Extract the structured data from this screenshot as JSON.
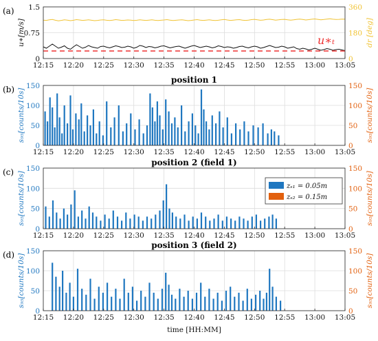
{
  "colors": {
    "blue": "#1f77c0",
    "orange": "#e2600e",
    "yellow": "#f0c232",
    "black": "#111111",
    "red": "#ee3030",
    "grid": "#dcdcdc"
  },
  "chart_data": [
    {
      "panel_label": "(a)",
      "type": "line",
      "title": "",
      "x_tick_labels": [
        "12:15",
        "12:20",
        "12:25",
        "12:30",
        "12:35",
        "12:40",
        "12:45",
        "12:50",
        "12:55",
        "13:00",
        "13:05"
      ],
      "ylabel": "u*[m/s]",
      "ylim": [
        0,
        1.5
      ],
      "y_ticks": [
        "0",
        "0.75",
        "1.5"
      ],
      "ylabel_right": "dr [deg]",
      "ylim_right": [
        0,
        360
      ],
      "y_ticks_right": [
        "0",
        "180",
        "360"
      ],
      "annotation": "u*t",
      "series": [
        {
          "axis": "left",
          "style": "solid",
          "color": "black",
          "values": [
            0.34,
            0.3,
            0.36,
            0.42,
            0.36,
            0.3,
            0.33,
            0.37,
            0.3,
            0.27,
            0.34,
            0.4,
            0.35,
            0.3,
            0.33,
            0.38,
            0.34,
            0.32,
            0.3,
            0.35,
            0.36,
            0.33,
            0.31,
            0.34,
            0.37,
            0.35,
            0.32,
            0.33,
            0.36,
            0.34,
            0.3,
            0.33,
            0.38,
            0.36,
            0.32,
            0.35,
            0.34,
            0.31,
            0.33,
            0.36,
            0.37,
            0.34,
            0.31,
            0.33,
            0.35,
            0.36,
            0.33,
            0.3,
            0.33,
            0.36,
            0.38,
            0.35,
            0.32,
            0.34,
            0.36,
            0.34,
            0.31,
            0.33,
            0.37,
            0.35,
            0.32,
            0.34,
            0.33,
            0.3,
            0.32,
            0.35,
            0.36,
            0.33,
            0.31,
            0.34,
            0.36,
            0.34,
            0.3,
            0.32,
            0.35,
            0.38,
            0.35,
            0.32,
            0.33,
            0.36,
            0.34,
            0.3,
            0.32,
            0.34,
            0.29,
            0.27,
            0.3,
            0.28,
            0.25,
            0.27,
            0.3,
            0.27,
            0.24,
            0.26,
            0.29,
            0.27,
            0.24,
            0.26,
            0.27,
            0.25,
            0.23
          ]
        },
        {
          "axis": "left",
          "style": "dashed",
          "color": "red",
          "values": [
            0.22,
            0.22
          ]
        },
        {
          "axis": "right",
          "style": "solid",
          "color": "yellow",
          "values": [
            268,
            266,
            270,
            272,
            267,
            263,
            266,
            270,
            268,
            264,
            267,
            271,
            269,
            266,
            268,
            270,
            267,
            264,
            266,
            269,
            270,
            267,
            265,
            268,
            271,
            269,
            266,
            267,
            269,
            268,
            265,
            267,
            270,
            268,
            266,
            268,
            270,
            267,
            265,
            267,
            269,
            271,
            268,
            265,
            267,
            269,
            270,
            267,
            264,
            266,
            269,
            271,
            268,
            266,
            268,
            270,
            267,
            265,
            267,
            270,
            272,
            269,
            266,
            268,
            270,
            271,
            268,
            266,
            268,
            271,
            273,
            270,
            267,
            269,
            272,
            274,
            271,
            268,
            270,
            272,
            273,
            270,
            268,
            270,
            273,
            275,
            272,
            269,
            271,
            274,
            276,
            273,
            270,
            272,
            275,
            277,
            274,
            272,
            273,
            275,
            274
          ]
        }
      ]
    },
    {
      "panel_label": "(b)",
      "type": "bar",
      "title": "position 1",
      "x_tick_labels": [
        "12:15",
        "12:20",
        "12:25",
        "12:30",
        "12:35",
        "12:40",
        "12:45",
        "12:50",
        "12:55",
        "13:00",
        "13:05"
      ],
      "xlim_minutes": [
        0,
        50
      ],
      "ylabel": "s95[counts/10s]",
      "ylim": [
        0,
        150
      ],
      "y_ticks": [
        "0",
        "50",
        "100",
        "150"
      ],
      "ylabel_right": "s95[counts/10s]",
      "y_ticks_right": [
        "0",
        "50",
        "100",
        "150"
      ],
      "series": [
        {
          "name": "",
          "color": "blue",
          "minutes": [
            0.3,
            0.7,
            1.1,
            1.5,
            1.9,
            2.3,
            2.7,
            3.1,
            3.5,
            4.0,
            4.5,
            4.9,
            5.4,
            5.9,
            6.3,
            6.8,
            7.3,
            7.8,
            8.3,
            8.8,
            9.3,
            9.9,
            10.5,
            11.2,
            11.8,
            12.5,
            13.2,
            13.8,
            14.5,
            15.2,
            15.9,
            16.6,
            17.2,
            17.7,
            18.1,
            18.5,
            18.9,
            19.3,
            19.8,
            20.3,
            20.8,
            21.3,
            21.8,
            22.3,
            22.9,
            23.5,
            24.1,
            24.7,
            25.2,
            25.7,
            26.2,
            26.6,
            27.0,
            27.5,
            28.0,
            28.6,
            29.2,
            29.8,
            30.5,
            31.2,
            31.9,
            32.6,
            33.3,
            34.0,
            34.8,
            35.6,
            36.4,
            37.2,
            37.8,
            38.3,
            39.0
          ],
          "values": [
            85,
            60,
            120,
            95,
            45,
            130,
            70,
            30,
            100,
            55,
            125,
            40,
            80,
            65,
            105,
            35,
            75,
            50,
            90,
            30,
            60,
            25,
            110,
            45,
            70,
            100,
            35,
            55,
            80,
            40,
            65,
            30,
            50,
            130,
            95,
            60,
            110,
            75,
            40,
            115,
            85,
            55,
            70,
            45,
            100,
            35,
            60,
            80,
            50,
            30,
            140,
            90,
            60,
            40,
            75,
            55,
            85,
            45,
            70,
            30,
            55,
            40,
            60,
            35,
            50,
            45,
            55,
            30,
            40,
            35,
            25
          ]
        }
      ]
    },
    {
      "panel_label": "(c)",
      "type": "bar",
      "title": "position 2 (field 1)",
      "x_tick_labels": [
        "12:15",
        "12:20",
        "12:25",
        "12:30",
        "12:35",
        "12:40",
        "12:45",
        "12:50",
        "12:55",
        "13:00",
        "13:05"
      ],
      "xlim_minutes": [
        0,
        50
      ],
      "ylabel": "s95[counts/10s]",
      "ylim": [
        0,
        150
      ],
      "y_ticks": [
        "0",
        "50",
        "100",
        "150"
      ],
      "ylabel_right": "s95[counts/10s]",
      "y_ticks_right": [
        "0",
        "50",
        "100",
        "150"
      ],
      "legend": [
        "zs1 = 0.05m",
        "zs2 = 0.15m"
      ],
      "legend_position": "top-right",
      "series": [
        {
          "name": "zs1 = 0.05m",
          "color": "blue",
          "minutes": [
            0.4,
            1.0,
            1.6,
            2.2,
            2.8,
            3.4,
            4.0,
            4.6,
            5.2,
            5.8,
            6.4,
            7.0,
            7.6,
            8.2,
            8.8,
            9.5,
            10.2,
            10.9,
            11.6,
            12.3,
            13.0,
            13.7,
            14.4,
            15.1,
            15.8,
            16.5,
            17.2,
            17.9,
            18.6,
            19.3,
            19.9,
            20.4,
            20.9,
            21.4,
            22.0,
            22.7,
            23.4,
            24.1,
            24.8,
            25.5,
            26.2,
            26.9,
            27.6,
            28.3,
            29.0,
            29.7,
            30.4,
            31.1,
            31.8,
            32.5,
            33.2,
            33.9,
            34.6,
            35.3,
            36.0,
            36.7,
            37.4,
            38.0,
            38.6
          ],
          "values": [
            55,
            30,
            70,
            40,
            25,
            50,
            35,
            60,
            95,
            30,
            45,
            25,
            55,
            40,
            30,
            20,
            35,
            25,
            45,
            30,
            20,
            40,
            25,
            35,
            30,
            20,
            30,
            25,
            35,
            45,
            70,
            110,
            50,
            40,
            30,
            25,
            35,
            20,
            30,
            25,
            40,
            30,
            20,
            25,
            35,
            20,
            30,
            25,
            20,
            30,
            25,
            20,
            30,
            35,
            20,
            25,
            30,
            35,
            25
          ]
        },
        {
          "name": "zs2 = 0.15m",
          "color": "orange",
          "minutes": [],
          "values": []
        }
      ]
    },
    {
      "panel_label": "(d)",
      "type": "bar",
      "title": "position 3 (field 2)",
      "x_tick_labels": [
        "12:15",
        "12:20",
        "12:25",
        "12:30",
        "12:35",
        "12:40",
        "12:45",
        "12:50",
        "12:55",
        "13:00",
        "13:05"
      ],
      "xlim_minutes": [
        0,
        50
      ],
      "xlabel": "time [HH:MM]",
      "ylabel": "s95[counts/10s]",
      "ylim": [
        0,
        150
      ],
      "y_ticks": [
        "0",
        "50",
        "100",
        "150"
      ],
      "ylabel_right": "s95[counts/10s]",
      "y_ticks_right": [
        "0",
        "50",
        "100",
        "150"
      ],
      "series": [
        {
          "name": "",
          "color": "blue",
          "minutes": [
            1.5,
            2.1,
            2.7,
            3.2,
            3.8,
            4.4,
            5.0,
            5.7,
            6.4,
            7.1,
            7.8,
            8.5,
            9.2,
            9.9,
            10.6,
            11.3,
            12.0,
            12.7,
            13.4,
            14.1,
            14.8,
            15.5,
            16.2,
            16.9,
            17.6,
            18.3,
            19.0,
            19.7,
            20.3,
            20.8,
            21.3,
            21.9,
            22.6,
            23.3,
            24.0,
            24.7,
            25.4,
            26.1,
            26.8,
            27.5,
            28.2,
            28.9,
            29.6,
            30.3,
            31.0,
            31.7,
            32.4,
            33.1,
            33.8,
            34.5,
            35.2,
            35.9,
            36.5,
            37.0,
            37.5,
            38.0,
            38.6,
            39.3
          ],
          "values": [
            120,
            85,
            60,
            100,
            45,
            70,
            35,
            105,
            55,
            40,
            80,
            30,
            60,
            45,
            70,
            35,
            55,
            30,
            80,
            45,
            60,
            25,
            50,
            35,
            70,
            45,
            30,
            55,
            95,
            65,
            40,
            30,
            55,
            35,
            50,
            30,
            45,
            70,
            35,
            55,
            30,
            45,
            25,
            50,
            60,
            35,
            45,
            25,
            55,
            30,
            40,
            50,
            30,
            45,
            105,
            60,
            35,
            25
          ]
        }
      ]
    }
  ]
}
